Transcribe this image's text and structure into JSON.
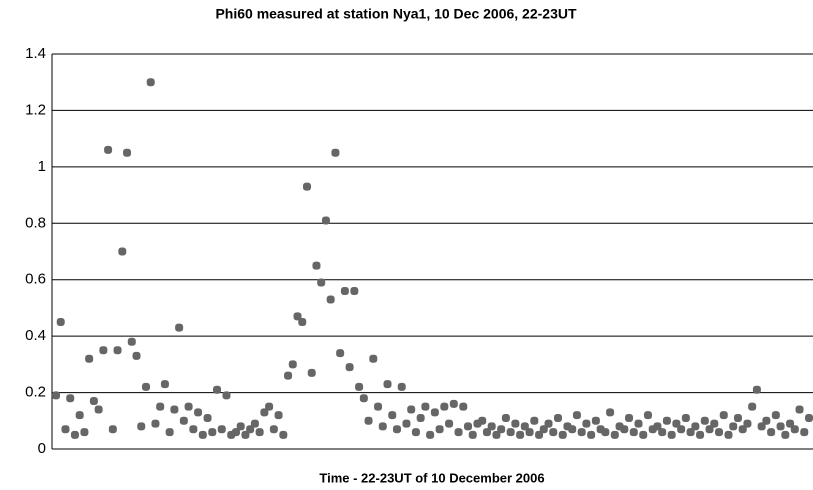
{
  "chart_data": {
    "type": "scatter",
    "title": "Phi60 measured at station Nya1, 10 Dec 2006, 22-23UT",
    "x_label": "Time - 22-23UT of 10 December 2006",
    "color": "#666666",
    "grid": true,
    "ylim": [
      0,
      1.4
    ],
    "yticks": [
      0,
      0.2,
      0.4,
      0.6,
      0.8,
      1,
      1.2,
      1.4
    ],
    "values": [
      0.19,
      0.45,
      0.07,
      0.18,
      0.05,
      0.12,
      0.06,
      0.32,
      0.17,
      0.14,
      0.35,
      1.06,
      0.07,
      0.35,
      0.7,
      1.05,
      0.38,
      0.33,
      0.08,
      0.22,
      1.3,
      0.09,
      0.15,
      0.23,
      0.06,
      0.14,
      0.43,
      0.1,
      0.15,
      0.07,
      0.13,
      0.05,
      0.11,
      0.06,
      0.21,
      0.07,
      0.19,
      0.05,
      0.06,
      0.08,
      0.05,
      0.07,
      0.09,
      0.06,
      0.13,
      0.15,
      0.07,
      0.12,
      0.05,
      0.26,
      0.3,
      0.47,
      0.45,
      0.93,
      0.27,
      0.65,
      0.59,
      0.81,
      0.53,
      1.05,
      0.34,
      0.56,
      0.29,
      0.56,
      0.22,
      0.18,
      0.1,
      0.32,
      0.15,
      0.08,
      0.23,
      0.12,
      0.07,
      0.22,
      0.09,
      0.14,
      0.06,
      0.11,
      0.15,
      0.05,
      0.13,
      0.07,
      0.15,
      0.09,
      0.16,
      0.06,
      0.15,
      0.08,
      0.05,
      0.09,
      0.1,
      0.06,
      0.08,
      0.05,
      0.07,
      0.11,
      0.06,
      0.09,
      0.05,
      0.08,
      0.06,
      0.1,
      0.05,
      0.07,
      0.09,
      0.06,
      0.11,
      0.05,
      0.08,
      0.07,
      0.12,
      0.06,
      0.09,
      0.05,
      0.1,
      0.07,
      0.06,
      0.13,
      0.05,
      0.08,
      0.07,
      0.11,
      0.06,
      0.09,
      0.05,
      0.12,
      0.07,
      0.08,
      0.06,
      0.1,
      0.05,
      0.09,
      0.07,
      0.11,
      0.06,
      0.08,
      0.05,
      0.1,
      0.07,
      0.09,
      0.06,
      0.12,
      0.05,
      0.08,
      0.11,
      0.07,
      0.09,
      0.15,
      0.21,
      0.08,
      0.1,
      0.06,
      0.12,
      0.08,
      0.05,
      0.09,
      0.07,
      0.14,
      0.06,
      0.11
    ]
  }
}
